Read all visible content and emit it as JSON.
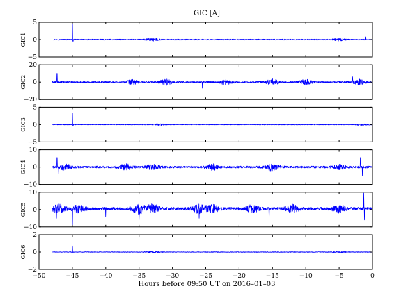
{
  "title": "GIC [A]",
  "xlabel": "Hours before  09:50 UT on 2016–01–03",
  "colors": {
    "trace": "#0000ff",
    "frame": "#000000"
  },
  "chart_data": {
    "type": "line",
    "title": "GIC [A]",
    "xlabel": "Hours before  09:50 UT on 2016–01–03",
    "xlim": [
      -50,
      0
    ],
    "x_ticks": [
      -50,
      -45,
      -40,
      -35,
      -30,
      -25,
      -20,
      -15,
      -10,
      -5,
      0
    ],
    "x_tick_labels": [
      "−50",
      "−45",
      "−40",
      "−35",
      "−30",
      "−25",
      "−20",
      "−15",
      "−10",
      "−5",
      "0"
    ],
    "x_data_start": -48,
    "grid": false,
    "panels": [
      {
        "ylabel": "GIC1",
        "ylim": [
          -5,
          5
        ],
        "yticks": [
          -5,
          0,
          5
        ],
        "ytick_labels": [
          "−5",
          "0",
          "5"
        ],
        "baseline": 0.0,
        "noise": 0.25,
        "spikes": [
          {
            "x": -45.0,
            "y": 4.6
          },
          {
            "x": -44.9,
            "y": -0.5
          },
          {
            "x": -32.0,
            "y": -0.7
          },
          {
            "x": -1.0,
            "y": 0.8
          }
        ],
        "bursts": [
          {
            "x": -33.0,
            "amp": 0.6
          },
          {
            "x": -5.0,
            "amp": 0.5
          }
        ]
      },
      {
        "ylabel": "GIC2",
        "ylim": [
          -20,
          20
        ],
        "yticks": [
          -20,
          0,
          20
        ],
        "ytick_labels": [
          "−20",
          "0",
          "20"
        ],
        "baseline": 0.0,
        "noise": 1.5,
        "spikes": [
          {
            "x": -47.3,
            "y": 10.0
          },
          {
            "x": -25.5,
            "y": -7.0
          },
          {
            "x": -3.0,
            "y": 6.0
          }
        ],
        "bursts": [
          {
            "x": -36.0,
            "amp": 4.0
          },
          {
            "x": -31.0,
            "amp": 5.0
          },
          {
            "x": -22.0,
            "amp": 4.0
          },
          {
            "x": -15.0,
            "amp": 5.0
          },
          {
            "x": -10.0,
            "amp": 4.0
          },
          {
            "x": -2.0,
            "amp": 5.0
          }
        ]
      },
      {
        "ylabel": "GIC3",
        "ylim": [
          -5,
          5
        ],
        "yticks": [
          -5,
          0,
          5
        ],
        "ytick_labels": [
          "−5",
          "0",
          "5"
        ],
        "baseline": 0.0,
        "noise": 0.15,
        "spikes": [
          {
            "x": -45.0,
            "y": 3.3
          },
          {
            "x": -44.9,
            "y": -0.3
          }
        ],
        "bursts": [
          {
            "x": -32.0,
            "amp": 0.4
          },
          {
            "x": -1.5,
            "amp": 0.3
          }
        ]
      },
      {
        "ylabel": "GIC4",
        "ylim": [
          -10,
          10
        ],
        "yticks": [
          -10,
          0,
          10
        ],
        "ytick_labels": [
          "−10",
          "0",
          "10"
        ],
        "baseline": 0.0,
        "noise": 1.0,
        "spikes": [
          {
            "x": -47.3,
            "y": 5.5
          },
          {
            "x": -47.1,
            "y": -4.0
          },
          {
            "x": -1.8,
            "y": 5.5
          },
          {
            "x": -1.5,
            "y": -5.0
          }
        ],
        "bursts": [
          {
            "x": -46.0,
            "amp": 2.5
          },
          {
            "x": -37.0,
            "amp": 2.5
          },
          {
            "x": -33.0,
            "amp": 2.0
          },
          {
            "x": -24.0,
            "amp": 2.5
          },
          {
            "x": -15.0,
            "amp": 3.0
          },
          {
            "x": -5.0,
            "amp": 2.0
          }
        ]
      },
      {
        "ylabel": "GIC5",
        "ylim": [
          -10,
          10
        ],
        "yticks": [
          -10,
          0,
          10
        ],
        "ytick_labels": [
          "−10",
          "0",
          "10"
        ],
        "baseline": 0.5,
        "noise": 1.4,
        "spikes": [
          {
            "x": -47.4,
            "y": -5.0
          },
          {
            "x": -45.0,
            "y": -8.8
          },
          {
            "x": -40.0,
            "y": -4.0
          },
          {
            "x": -35.0,
            "y": -6.0
          },
          {
            "x": -26.0,
            "y": -5.0
          },
          {
            "x": -15.5,
            "y": -5.0
          },
          {
            "x": -1.3,
            "y": 9.5
          },
          {
            "x": -1.2,
            "y": -6.0
          }
        ],
        "bursts": [
          {
            "x": -47.0,
            "amp": 3.5
          },
          {
            "x": -44.0,
            "amp": 3.0
          },
          {
            "x": -35.0,
            "amp": 4.0
          },
          {
            "x": -33.0,
            "amp": 3.5
          },
          {
            "x": -26.0,
            "amp": 3.5
          },
          {
            "x": -24.0,
            "amp": 3.0
          },
          {
            "x": -18.0,
            "amp": 3.0
          },
          {
            "x": -12.0,
            "amp": 3.0
          },
          {
            "x": -5.0,
            "amp": 3.0
          }
        ]
      },
      {
        "ylabel": "GIC6",
        "ylim": [
          -2,
          2
        ],
        "yticks": [
          -2,
          0,
          2
        ],
        "ytick_labels": [
          "−2",
          "0",
          "2"
        ],
        "baseline": 0.0,
        "noise": 0.06,
        "spikes": [
          {
            "x": -45.0,
            "y": 0.7
          },
          {
            "x": -44.9,
            "y": -0.1
          }
        ],
        "bursts": [
          {
            "x": -33.0,
            "amp": 0.15
          },
          {
            "x": -5.0,
            "amp": 0.12
          }
        ]
      }
    ]
  }
}
